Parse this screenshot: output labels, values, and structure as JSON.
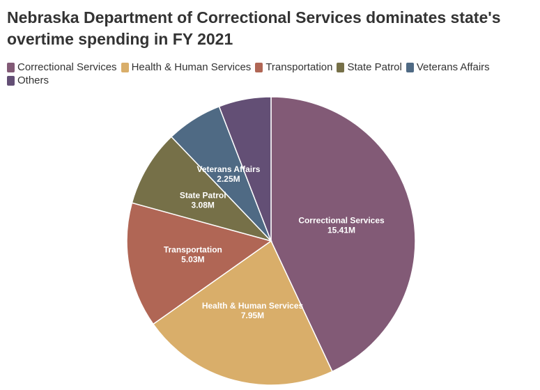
{
  "title": "Nebraska Department of Correctional Services dominates state's overtime spending in FY 2021",
  "chart_data": {
    "type": "pie",
    "title": "Nebraska Department of Correctional Services dominates state's overtime spending in FY 2021",
    "legend_position": "top-left",
    "slices": [
      {
        "name": "Correctional Services",
        "value": 15.41,
        "value_label": "15.41M",
        "color": "#825a76"
      },
      {
        "name": "Health & Human Services",
        "value": 7.95,
        "value_label": "7.95M",
        "color": "#d9ae6a"
      },
      {
        "name": "Transportation",
        "value": 5.03,
        "value_label": "5.03M",
        "color": "#b06655"
      },
      {
        "name": "State Patrol",
        "value": 3.08,
        "value_label": "3.08M",
        "color": "#767048"
      },
      {
        "name": "Veterans Affairs",
        "value": 2.25,
        "value_label": "2.25M",
        "color": "#4f6a84"
      },
      {
        "name": "Others",
        "value": 2.1,
        "value_label": "",
        "color": "#634f75"
      }
    ]
  }
}
